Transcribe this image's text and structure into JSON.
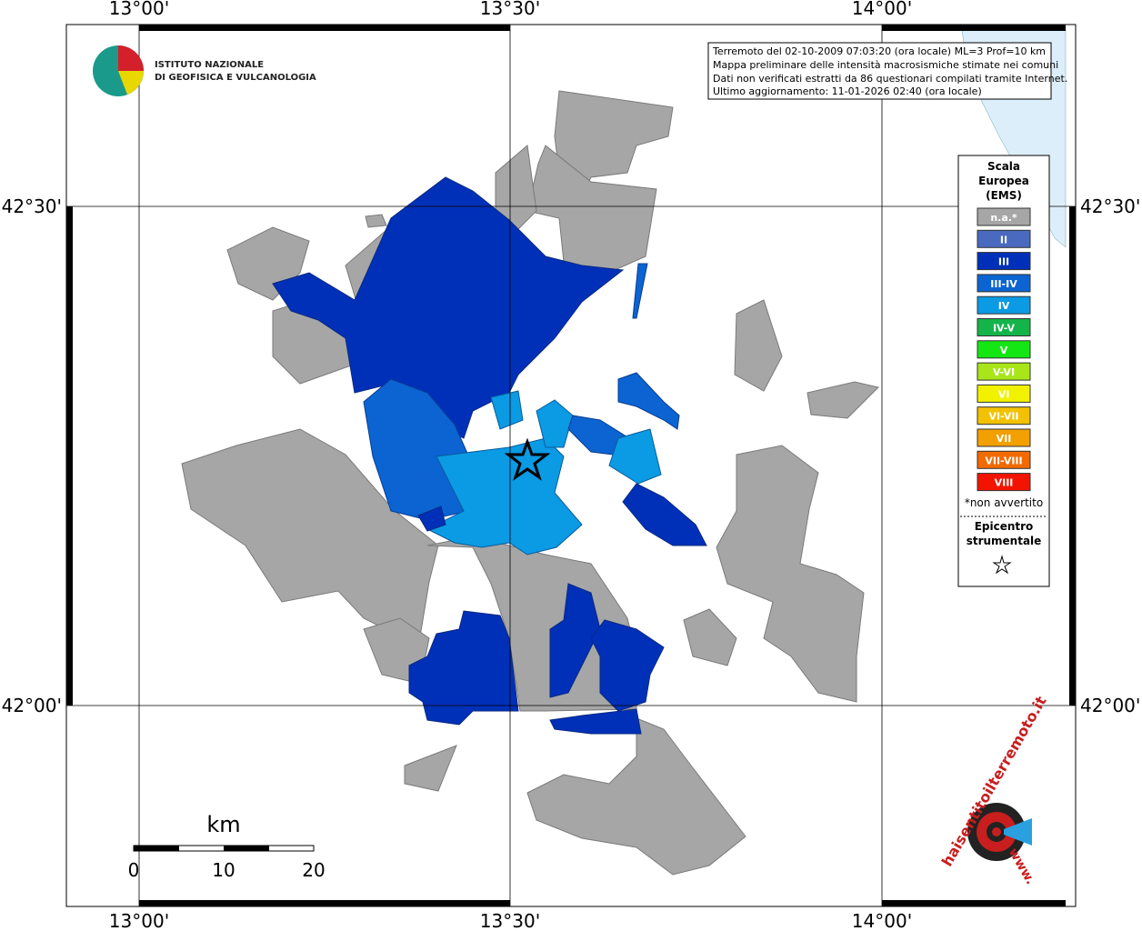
{
  "axes": {
    "lon": [
      "13°00'",
      "13°30'",
      "14°00'"
    ],
    "lat": [
      "42°30'",
      "42°00'"
    ]
  },
  "logo": {
    "line1": "ISTITUTO NAZIONALE",
    "line2": "DI GEOFISICA E VULCANOLOGIA"
  },
  "info": [
    "Terremoto del 02-10-2009 07:03:20 (ora locale) ML=3 Prof=10 km",
    "Mappa preliminare delle intensità macrosismiche stimate nei comuni",
    "Dati non verificati estratti da 86 questionari compilati tramite Internet.",
    "Ultimo aggiornamento: 11-01-2026 02:40 (ora locale)"
  ],
  "legend": {
    "title": [
      "Scala",
      "Europea",
      "(EMS)"
    ],
    "items": [
      {
        "label": "n.a.*",
        "color": "#a6a6a6"
      },
      {
        "label": "II",
        "color": "#4a6abf"
      },
      {
        "label": "III",
        "color": "#0030b8"
      },
      {
        "label": "III-IV",
        "color": "#0b64d2"
      },
      {
        "label": "IV",
        "color": "#0b9ae4"
      },
      {
        "label": "IV-V",
        "color": "#14b44a"
      },
      {
        "label": "V",
        "color": "#14e614"
      },
      {
        "label": "V-VI",
        "color": "#a8e61a"
      },
      {
        "label": "VI",
        "color": "#f2f200"
      },
      {
        "label": "VI-VII",
        "color": "#f2c200"
      },
      {
        "label": "VII",
        "color": "#f2a000"
      },
      {
        "label": "VII-VIII",
        "color": "#f26a00"
      },
      {
        "label": "VIII",
        "color": "#f21400"
      }
    ],
    "note": "*non avvertito",
    "epicenter": [
      "Epicentro",
      "strumentale"
    ]
  },
  "scale": {
    "unit": "km",
    "ticks": [
      0,
      10,
      20
    ]
  },
  "watermark": {
    "site": "haisentitoilterremoto.it",
    "prefix": "www."
  }
}
